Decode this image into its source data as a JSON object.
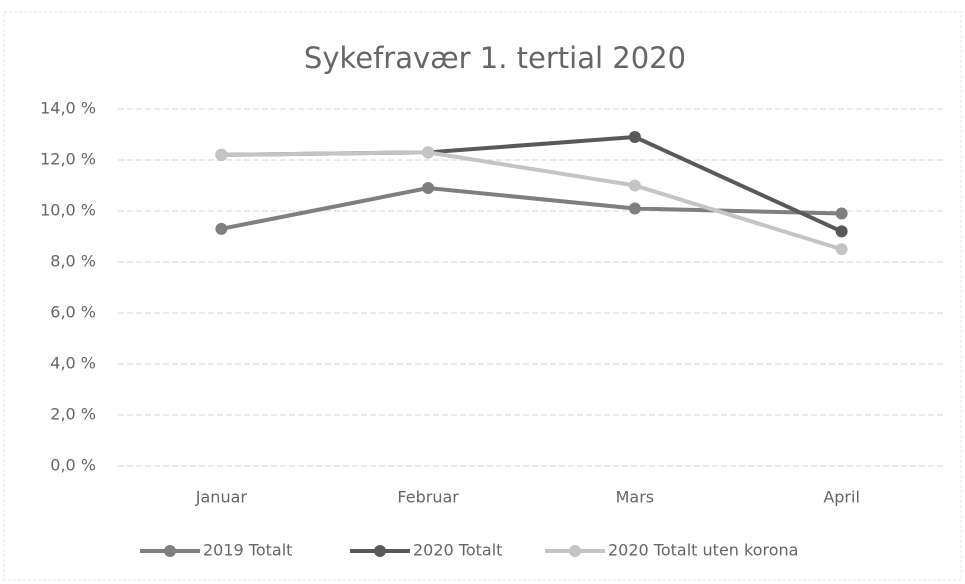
{
  "chart_data": {
    "type": "line",
    "title": "Sykefravær 1. tertial 2020",
    "categories": [
      "Januar",
      "Februar",
      "Mars",
      "April"
    ],
    "series": [
      {
        "name": "2019 Totalt",
        "color": "#7f7f7f",
        "values": [
          9.3,
          10.9,
          10.1,
          9.9
        ]
      },
      {
        "name": "2020 Totalt",
        "color": "#595959",
        "values": [
          12.2,
          12.3,
          12.9,
          9.2
        ]
      },
      {
        "name": "2020 Totalt uten korona",
        "color": "#c4c4c4",
        "values": [
          12.2,
          12.3,
          11.0,
          8.5
        ]
      }
    ],
    "ylim": [
      0,
      14
    ],
    "yticks": [
      {
        "value": 0,
        "label": "0,0 %"
      },
      {
        "value": 2,
        "label": "2,0 %"
      },
      {
        "value": 4,
        "label": "4,0 %"
      },
      {
        "value": 6,
        "label": "6,0 %"
      },
      {
        "value": 8,
        "label": "8,0 %"
      },
      {
        "value": 10,
        "label": "10,0 %"
      },
      {
        "value": 12,
        "label": "12,0 %"
      },
      {
        "value": 14,
        "label": "14,0 %"
      }
    ],
    "grid": true,
    "legend": "bottom"
  }
}
